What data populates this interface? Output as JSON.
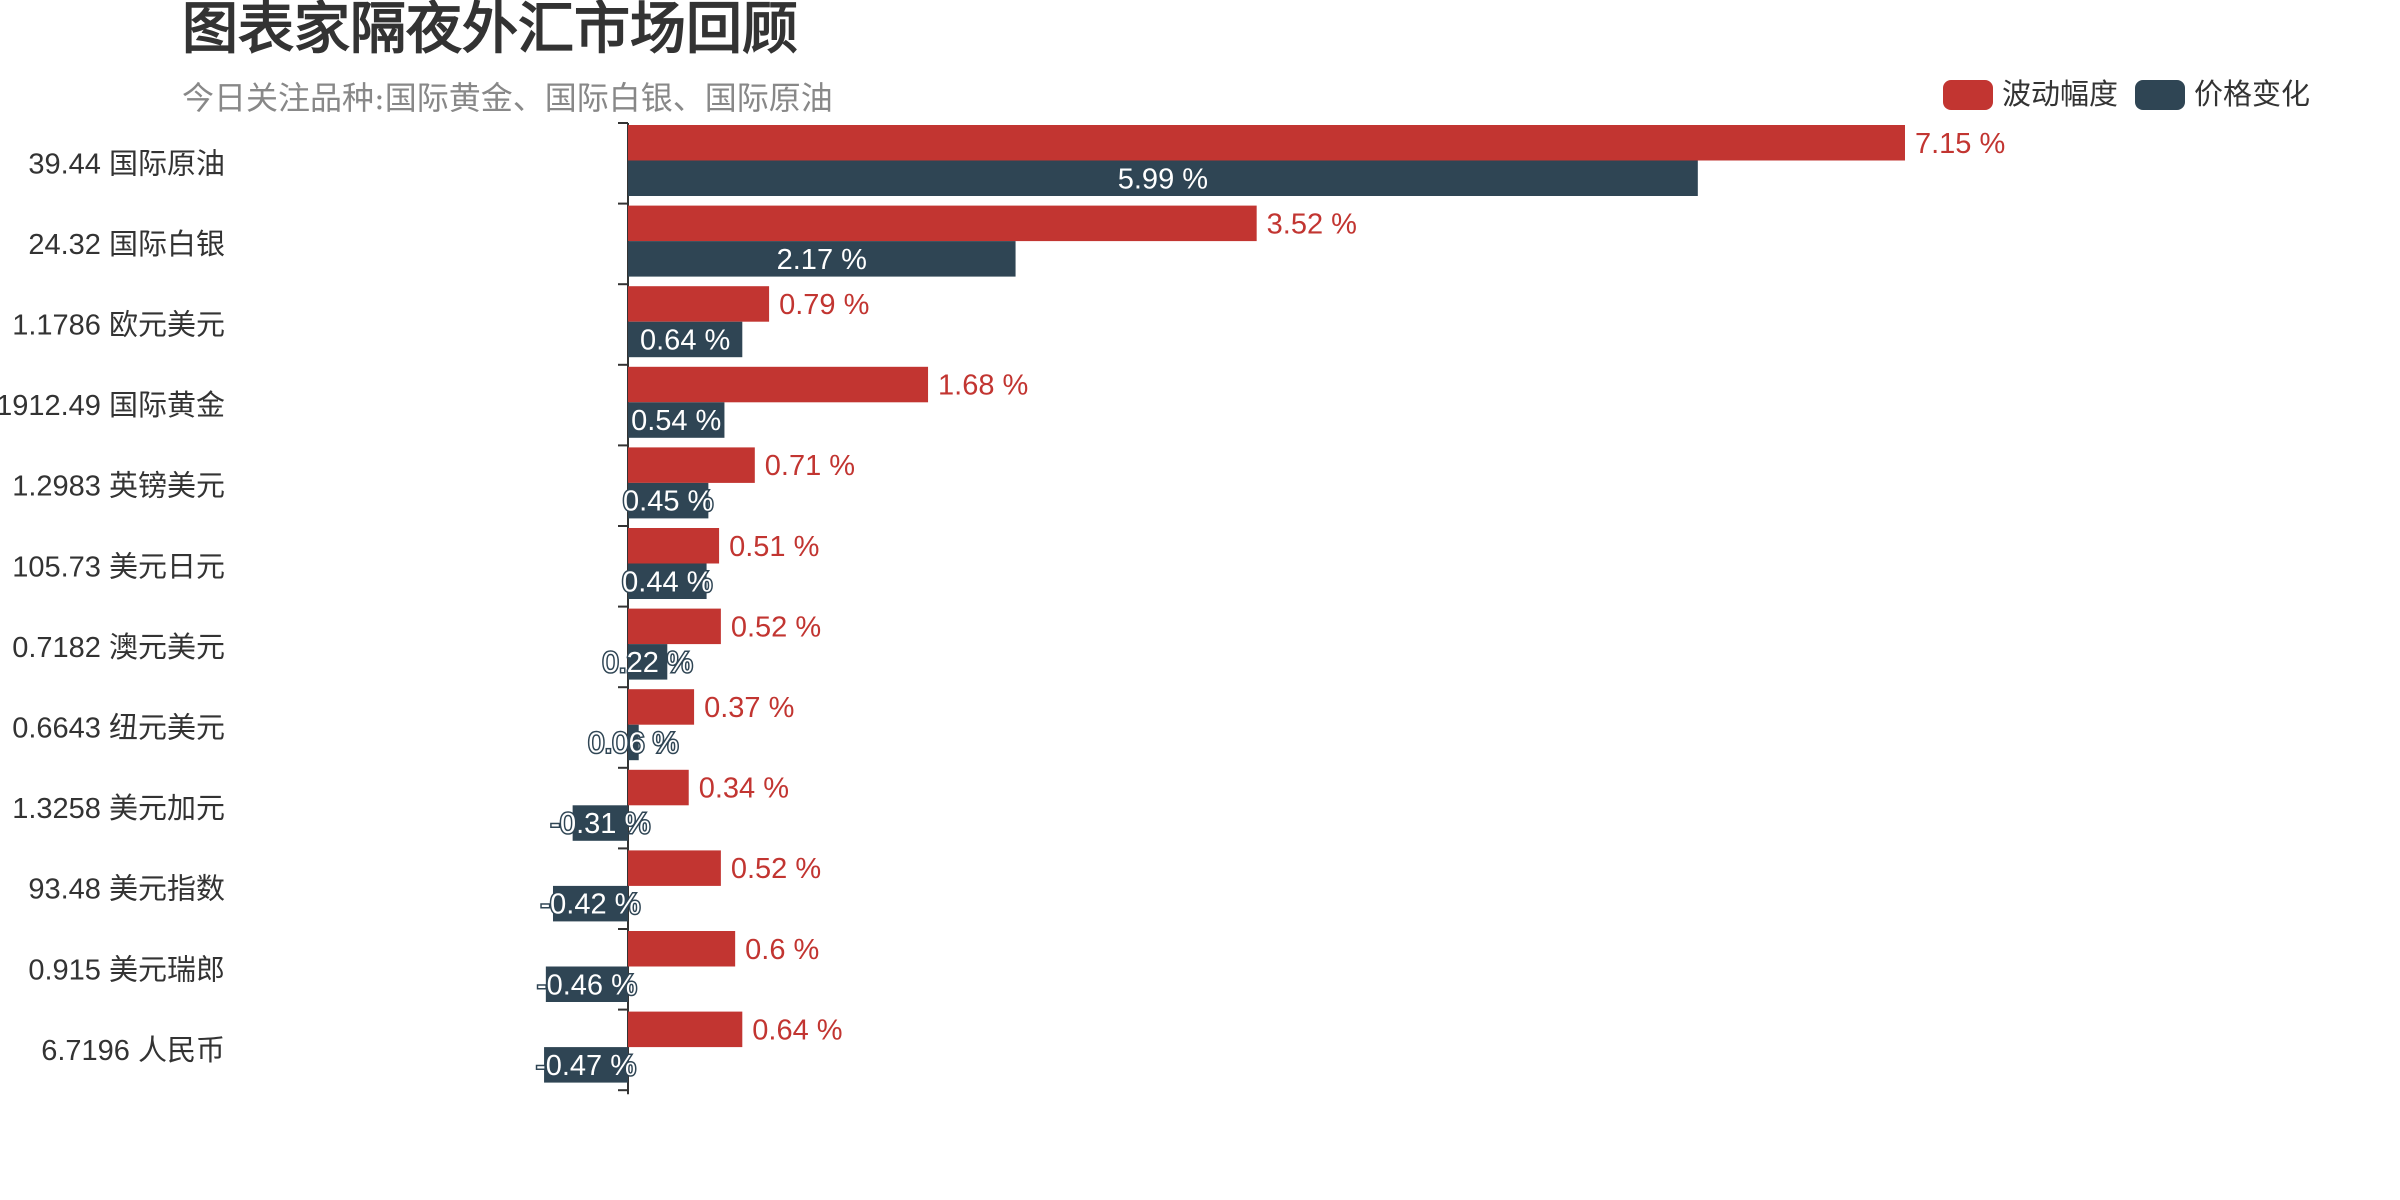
{
  "header": {
    "title": "图表家隔夜外汇市场回顾",
    "subtitle": "今日关注品种:国际黄金、国际白银、国际原油"
  },
  "colors": {
    "volatility": "#c23531",
    "change": "#2f4554",
    "axis": "#333333",
    "title": "#333333",
    "subtitle": "#888888"
  },
  "chart_data": {
    "type": "bar",
    "orientation": "horizontal",
    "title": "图表家隔夜外汇市场回顾",
    "subtitle": "今日关注品种:国际黄金、国际白银、国际原油",
    "legend_placement": "top-right",
    "grid": false,
    "value_suffix": " %",
    "categories": [
      "39.44 国际原油",
      "24.32 国际白银",
      "1.1786 欧元美元",
      "1912.49 国际黄金",
      "1.2983 英镑美元",
      "105.73 美元日元",
      "0.7182 澳元美元",
      "0.6643 纽元美元",
      "1.3258 美元加元",
      "93.48 美元指数",
      "0.915 美元瑞郎",
      "6.7196 人民币"
    ],
    "series": [
      {
        "name": "波动幅度",
        "values": [
          7.15,
          3.52,
          0.79,
          1.68,
          0.71,
          0.51,
          0.52,
          0.37,
          0.34,
          0.52,
          0.6,
          0.64
        ]
      },
      {
        "name": "价格变化",
        "values": [
          5.99,
          2.17,
          0.64,
          0.54,
          0.45,
          0.44,
          0.22,
          0.06,
          -0.31,
          -0.42,
          -0.46,
          -0.47
        ]
      }
    ],
    "xlim": [
      -0.47,
      9
    ]
  }
}
